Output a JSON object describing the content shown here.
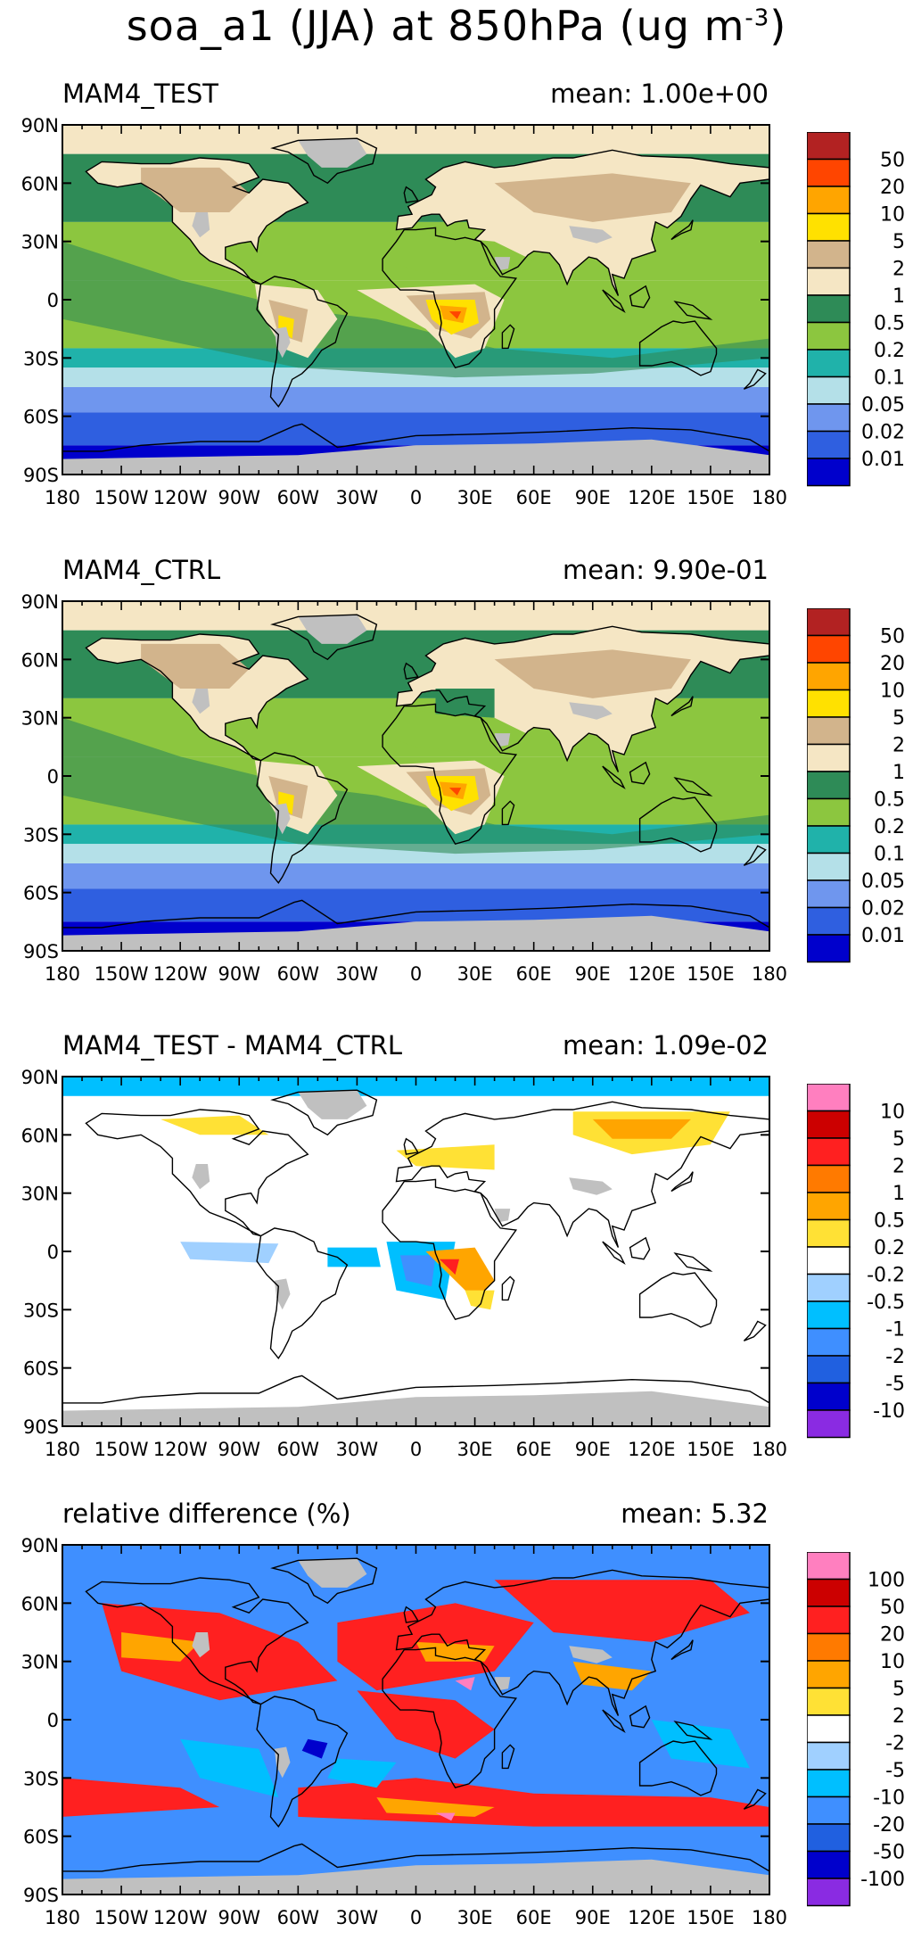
{
  "figure": {
    "title_main": "soa_a1 (JJA) at 850hPa (ug m",
    "title_sup": "-3",
    "title_end": ")"
  },
  "axes": {
    "lat_labels": [
      "90N",
      "60N",
      "30N",
      "0",
      "30S",
      "60S",
      "90S"
    ],
    "lon_labels": [
      "180",
      "150W",
      "120W",
      "90W",
      "60W",
      "30W",
      "0",
      "30E",
      "60E",
      "90E",
      "120E",
      "150E",
      "180"
    ]
  },
  "colors": {
    "missing": "#c0c0c0",
    "abs_scale": [
      "#0000cc",
      "#2f5fe0",
      "#6f96ee",
      "#b4e0e8",
      "#20b2aa",
      "#8cc63f",
      "#2e8b57",
      "#f5e6c4",
      "#d2b48c",
      "#ffe100",
      "#ffa500",
      "#ff4500",
      "#b22222"
    ],
    "diff_scale": [
      "#8a2be2",
      "#0000cc",
      "#2060e0",
      "#3f8fff",
      "#00bfff",
      "#a0d0ff",
      "#ffffff",
      "#ffe135",
      "#ffa500",
      "#ff7a00",
      "#ff2020",
      "#cc0000",
      "#ff7fbf"
    ]
  },
  "panels": [
    {
      "title": "MAM4_TEST",
      "mean": "mean:  1.00e+00",
      "colorbar_labels": [
        "50",
        "20",
        "10",
        "5",
        "2",
        "1",
        "0.5",
        "0.2",
        "0.1",
        "0.05",
        "0.02",
        "0.01"
      ]
    },
    {
      "title": "MAM4_CTRL",
      "mean": "mean:  9.90e-01",
      "colorbar_labels": [
        "50",
        "20",
        "10",
        "5",
        "2",
        "1",
        "0.5",
        "0.2",
        "0.1",
        "0.05",
        "0.02",
        "0.01"
      ]
    },
    {
      "title": "MAM4_TEST - MAM4_CTRL",
      "mean": "mean:  1.09e-02",
      "colorbar_labels": [
        "10",
        "5",
        "2",
        "1",
        "0.5",
        "0.2",
        "-0.2",
        "-0.5",
        "-1",
        "-2",
        "-5",
        "-10"
      ]
    },
    {
      "title": "relative difference (%)",
      "mean": "mean:   5.32",
      "colorbar_labels": [
        "100",
        "50",
        "20",
        "10",
        "5",
        "2",
        "-2",
        "-5",
        "-10",
        "-20",
        "-50",
        "-100"
      ]
    }
  ]
}
